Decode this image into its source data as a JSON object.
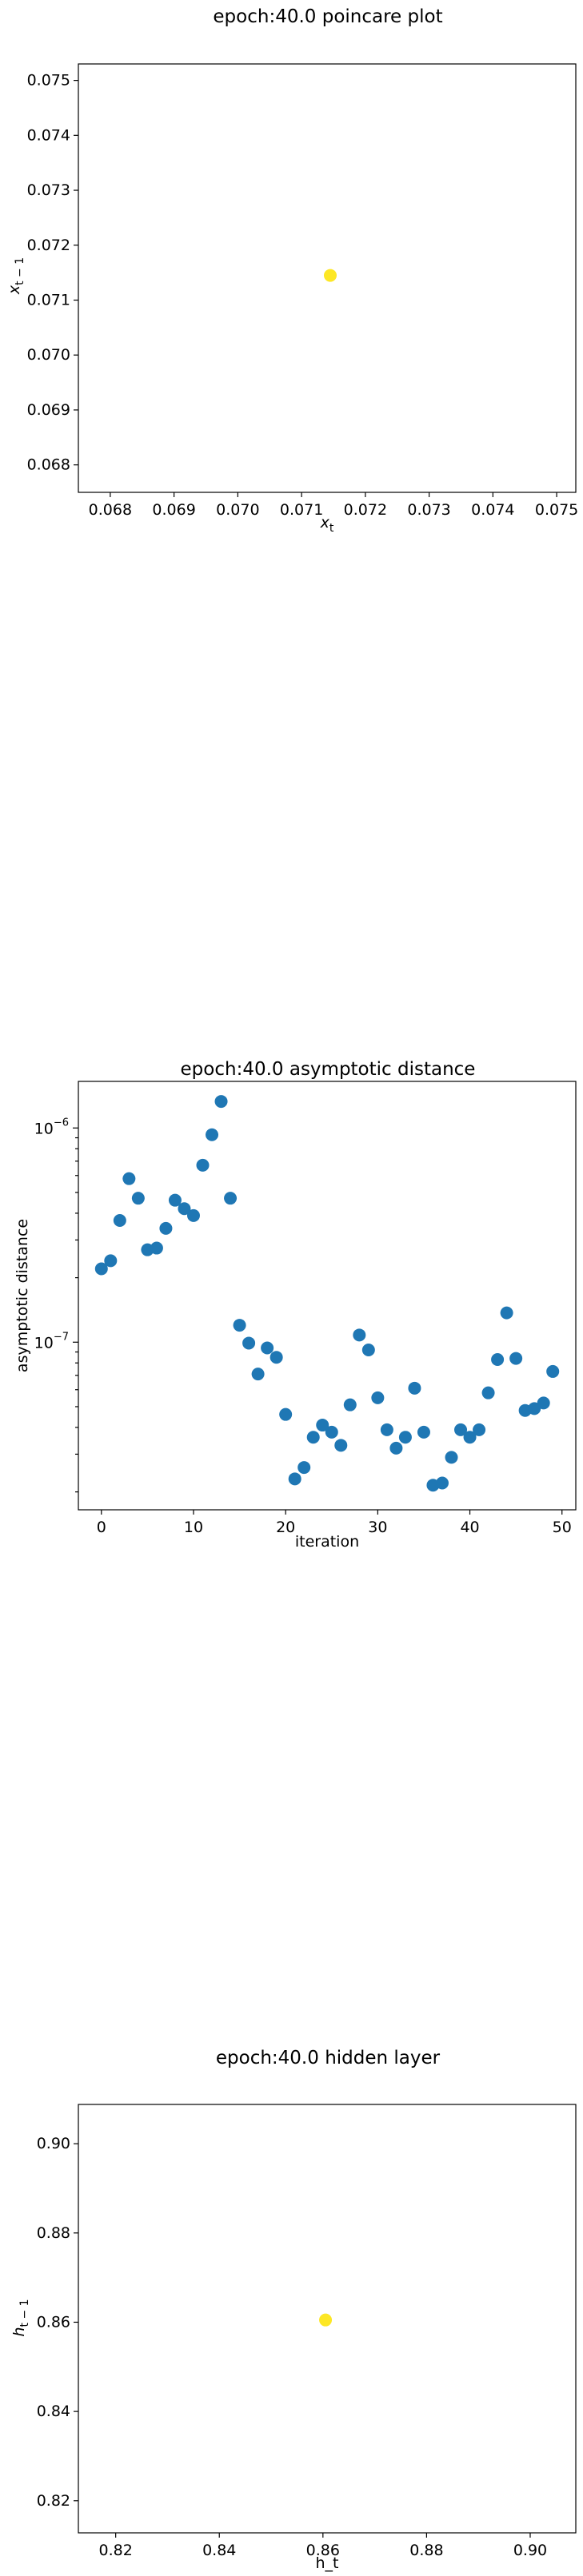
{
  "colors": {
    "scatter_blue": "#1f77b4",
    "scatter_yellow": "#fde725",
    "axes": "#000000",
    "background": "#ffffff"
  },
  "chart_data": [
    {
      "type": "scatter",
      "title": "epoch:40.0 poincare plot",
      "xlabel": "x_t",
      "ylabel": "x_{t-1}",
      "xlim": [
        0.0675,
        0.0753
      ],
      "ylim": [
        0.0675,
        0.0753
      ],
      "xticks": [
        "0.068",
        "0.069",
        "0.070",
        "0.071",
        "0.072",
        "0.073",
        "0.074",
        "0.075"
      ],
      "yticks": [
        "0.068",
        "0.069",
        "0.070",
        "0.071",
        "0.072",
        "0.073",
        "0.074",
        "0.075"
      ],
      "points": [
        {
          "x": 0.07145,
          "y": 0.07145
        }
      ]
    },
    {
      "type": "scatter",
      "title": "epoch:40.0 asymptotic distance",
      "xlabel": "iteration",
      "ylabel": "asymptotic distance",
      "yscale": "log",
      "xlim": [
        -2.5,
        51.5
      ],
      "ylim": [
        1.65e-08,
        1.65e-06
      ],
      "xticks": [
        "0",
        "10",
        "20",
        "30",
        "40",
        "50"
      ],
      "ytick_labels": [
        "10^-7",
        "10^-6"
      ],
      "x": [
        0,
        1,
        2,
        3,
        4,
        5,
        6,
        7,
        8,
        9,
        10,
        11,
        12,
        13,
        14,
        15,
        16,
        17,
        18,
        19,
        20,
        21,
        22,
        23,
        24,
        25,
        26,
        27,
        28,
        29,
        30,
        31,
        32,
        33,
        34,
        35,
        36,
        37,
        38,
        39,
        40,
        41,
        42,
        43,
        44,
        45,
        46,
        47,
        48,
        49
      ],
      "y": [
        2.2e-07,
        2.4e-07,
        3.7e-07,
        5.8e-07,
        4.7e-07,
        2.7e-07,
        2.75e-07,
        3.4e-07,
        4.6e-07,
        4.2e-07,
        3.9e-07,
        6.7e-07,
        9.3e-07,
        1.33e-06,
        4.7e-07,
        1.2e-07,
        9.9e-08,
        7.1e-08,
        9.4e-08,
        8.5e-08,
        4.6e-08,
        2.3e-08,
        2.6e-08,
        3.6e-08,
        4.1e-08,
        3.8e-08,
        3.3e-08,
        5.1e-08,
        1.08e-07,
        9.2e-08,
        5.5e-08,
        3.9e-08,
        3.2e-08,
        3.6e-08,
        6.1e-08,
        3.8e-08,
        2.15e-08,
        2.2e-08,
        2.9e-08,
        3.9e-08,
        3.6e-08,
        3.9e-08,
        5.8e-08,
        8.3e-08,
        1.37e-07,
        8.4e-08,
        4.8e-08,
        4.9e-08,
        5.2e-08,
        7.3e-08
      ]
    },
    {
      "type": "scatter",
      "title": "epoch:40.0 hidden layer",
      "xlabel": "h_t",
      "ylabel": "h_{t-1}",
      "xlim": [
        0.8128,
        0.9088
      ],
      "ylim": [
        0.8128,
        0.9088
      ],
      "xticks": [
        "0.82",
        "0.84",
        "0.86",
        "0.88",
        "0.90"
      ],
      "yticks": [
        "0.82",
        "0.84",
        "0.86",
        "0.88",
        "0.90"
      ],
      "points": [
        {
          "x": 0.8605,
          "y": 0.8605
        }
      ]
    }
  ]
}
